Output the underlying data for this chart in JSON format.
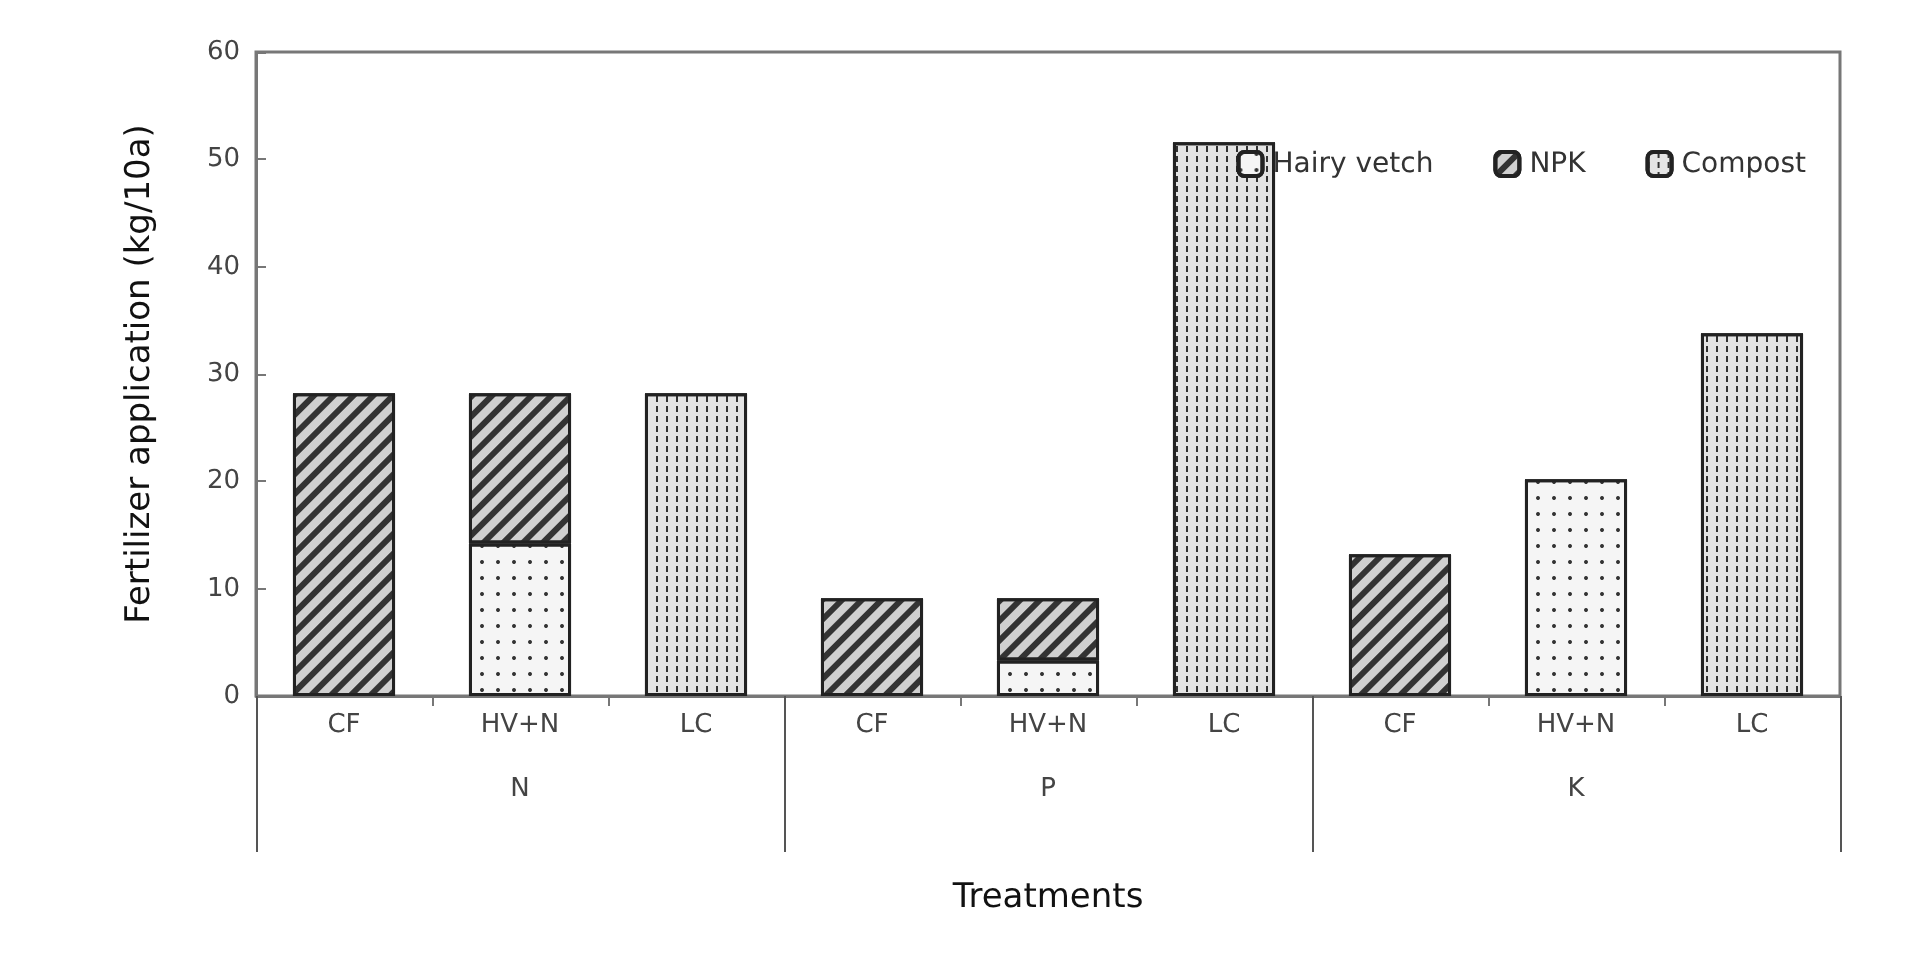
{
  "chart_data": {
    "type": "bar",
    "stacked": true,
    "xlabel": "Treatments",
    "ylabel": "Fertilizer application (kg/10a)",
    "categories": [
      "CF",
      "HV+N",
      "LC",
      "CF",
      "HV+N",
      "LC",
      "CF",
      "HV+N",
      "LC"
    ],
    "series": [
      {
        "name": "Hairy vetch",
        "color": "#f5f5f5",
        "values": [
          null,
          14.2,
          null,
          null,
          3.3,
          null,
          null,
          20.2,
          null
        ]
      },
      {
        "name": "NPK",
        "color": "#d0d0d0",
        "values": [
          28.2,
          14,
          null,
          9.1,
          5.8,
          null,
          13.2,
          null,
          null
        ]
      },
      {
        "name": "Compost",
        "color": "#e4e4e4",
        "values": [
          null,
          null,
          28.2,
          null,
          null,
          51.6,
          null,
          null,
          33.8
        ]
      }
    ],
    "annotations": [
      "N",
      "P",
      "K"
    ],
    "ylim": [
      0,
      60
    ],
    "yticks": [
      0,
      10,
      20,
      30,
      40,
      50,
      60
    ],
    "grid": false,
    "legend": "top right"
  }
}
